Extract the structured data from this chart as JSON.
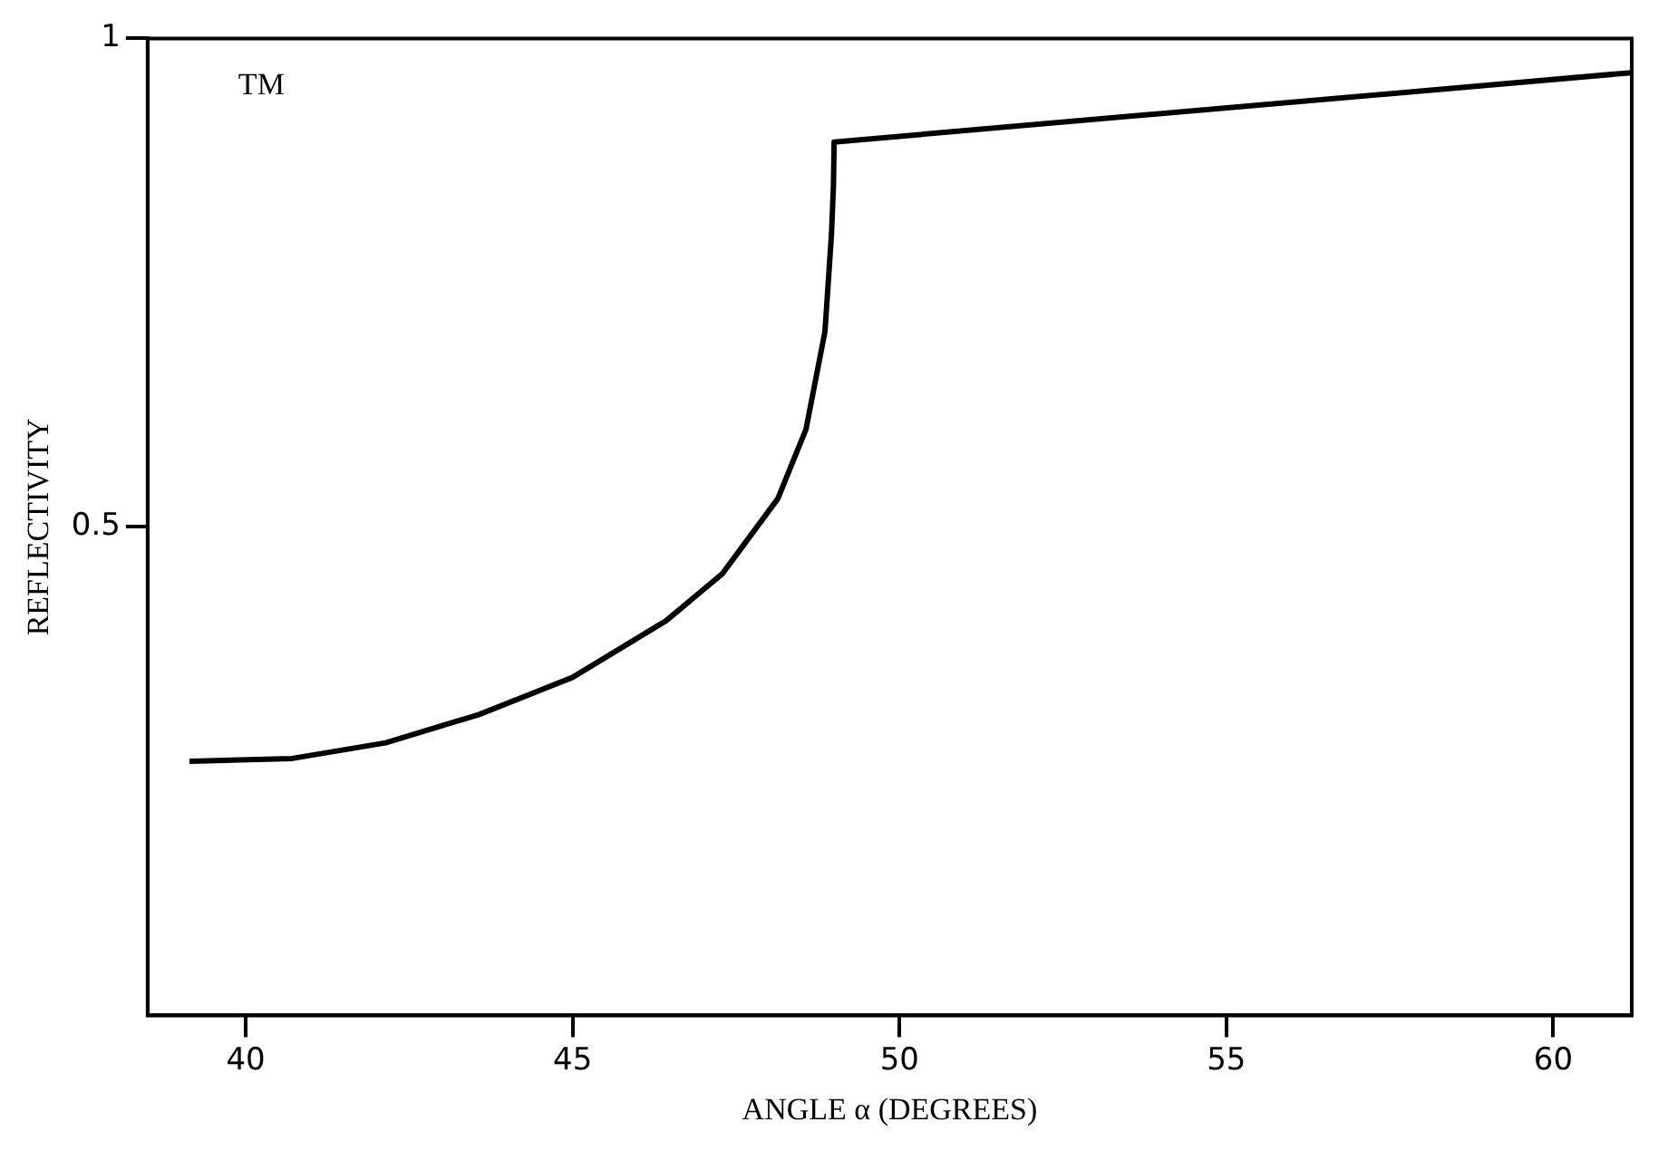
{
  "chart_data": {
    "type": "line",
    "xlabel": "ANGLE α (DEGREES)",
    "ylabel": "REFLECTIVITY",
    "annotations": [
      "TM"
    ],
    "series": [
      {
        "color": "#000000",
        "x": [
          39.14,
          40.71,
          42.14,
          43.57,
          45.0,
          46.43,
          47.29,
          48.14,
          48.57,
          48.86,
          48.96,
          48.99,
          49.0,
          61.2
        ],
        "values": [
          0.26,
          0.263,
          0.279,
          0.308,
          0.346,
          0.404,
          0.452,
          0.529,
          0.6,
          0.7,
          0.8,
          0.85,
          0.894,
          0.965
        ]
      }
    ],
    "xlim": [
      38.5,
      61.2
    ],
    "xticks": [
      40,
      45,
      50,
      55,
      60
    ],
    "ylim": [
      0,
      1
    ],
    "yticks": [
      0.5,
      1
    ],
    "grid": false,
    "legend": false,
    "marker": "none",
    "line_style": "solid"
  }
}
